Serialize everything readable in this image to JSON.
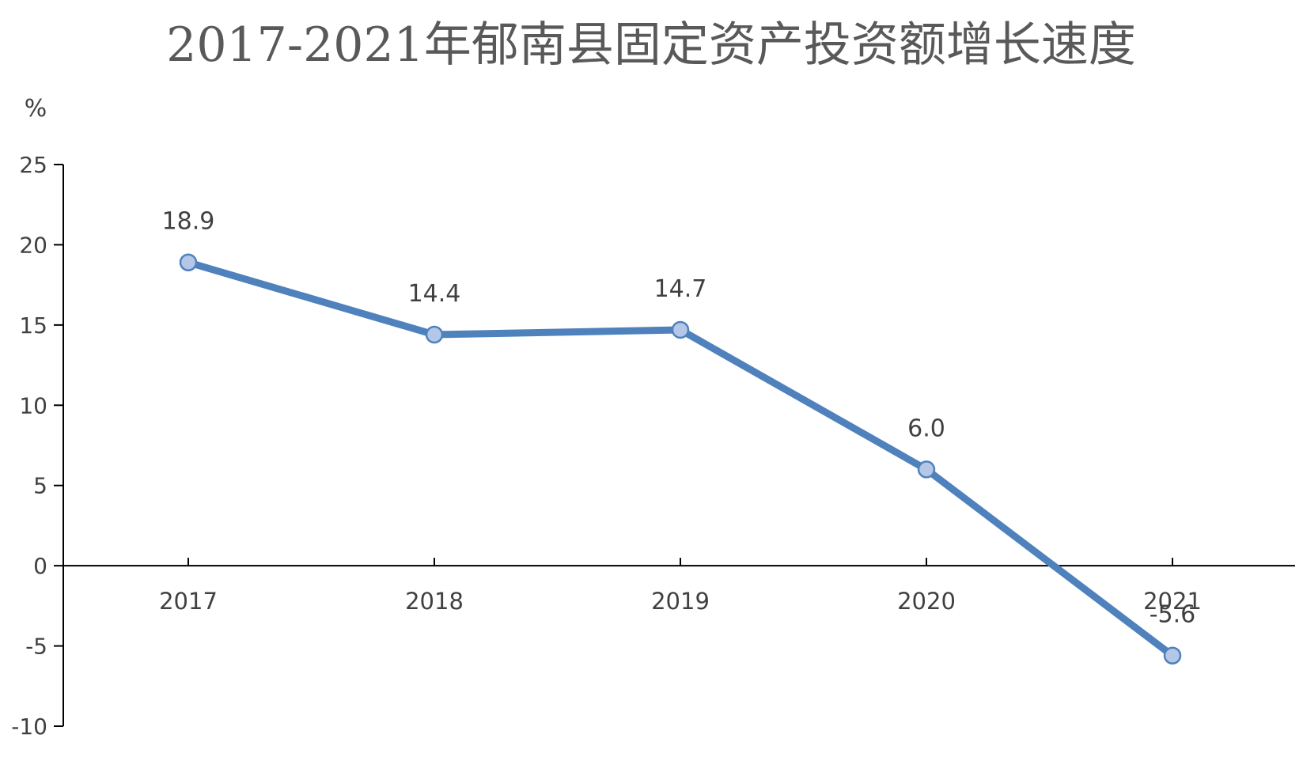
{
  "chart_data": {
    "type": "line",
    "title": "2017-2021年郁南县固定资产投资额增长速度",
    "ylabel": "%",
    "xlabel": "",
    "categories": [
      "2017",
      "2018",
      "2019",
      "2020",
      "2021"
    ],
    "series": [
      {
        "values": [
          18.9,
          14.4,
          14.7,
          6.0,
          -5.6
        ],
        "data_labels": [
          "18.9",
          "14.4",
          "14.7",
          "6.0",
          "-5.6"
        ]
      }
    ],
    "ylim": [
      -10,
      25
    ],
    "yticks": [
      25,
      20,
      15,
      10,
      5,
      0,
      -5,
      -10
    ],
    "ytick_labels": [
      "25",
      "20",
      "15",
      "10",
      "5",
      "0",
      "-5",
      "-10"
    ],
    "grid": false,
    "legend": "none",
    "colors": {
      "line": "#4f81bd",
      "marker_fill": "#b4c7e7",
      "marker_stroke": "#4f81bd",
      "axis": "#000000",
      "text": "#404040",
      "title": "#595959"
    }
  }
}
